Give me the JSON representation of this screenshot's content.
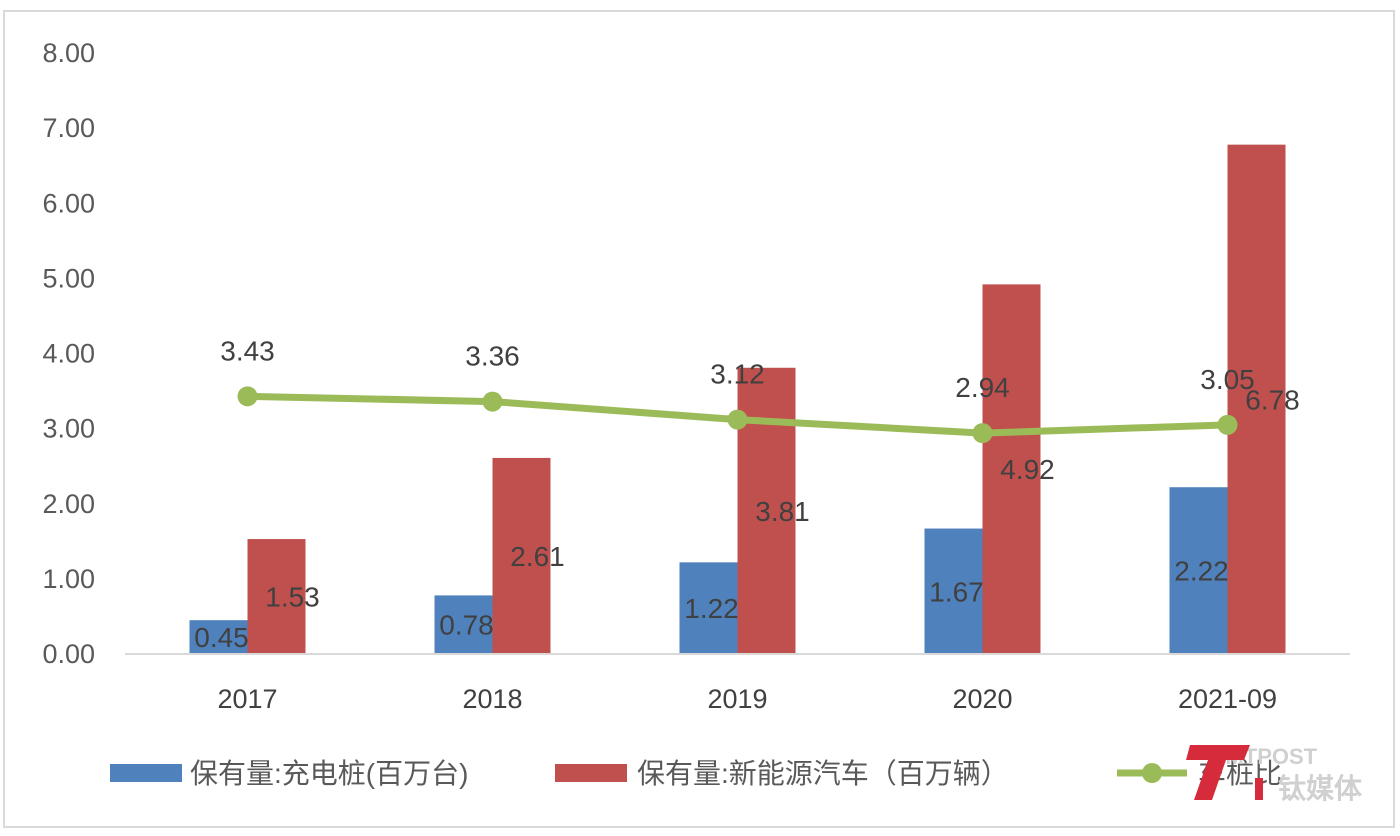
{
  "chart_data": {
    "type": "bar",
    "categories": [
      "2017",
      "2018",
      "2019",
      "2020",
      "2021-09"
    ],
    "series": [
      {
        "name": "保有量:充电桩(百万台)",
        "kind": "bar",
        "color": "#4f81bd",
        "values": [
          0.45,
          0.78,
          1.22,
          1.67,
          2.22
        ]
      },
      {
        "name": "保有量:新能源汽车（百万辆）",
        "kind": "bar",
        "color": "#c0504d",
        "values": [
          1.53,
          2.61,
          3.81,
          4.92,
          6.78
        ]
      },
      {
        "name": "车桩比",
        "kind": "line",
        "color": "#9bbb59",
        "values": [
          3.43,
          3.36,
          3.12,
          2.94,
          3.05
        ]
      }
    ],
    "yticks": [
      "0.00",
      "1.00",
      "2.00",
      "3.00",
      "4.00",
      "5.00",
      "6.00",
      "7.00",
      "8.00"
    ],
    "ylim": [
      0,
      8
    ],
    "grid": false,
    "legend_position": "bottom"
  },
  "watermark": {
    "logo_text": "T",
    "text": "TMTPOST",
    "text2": "钛媒体"
  }
}
